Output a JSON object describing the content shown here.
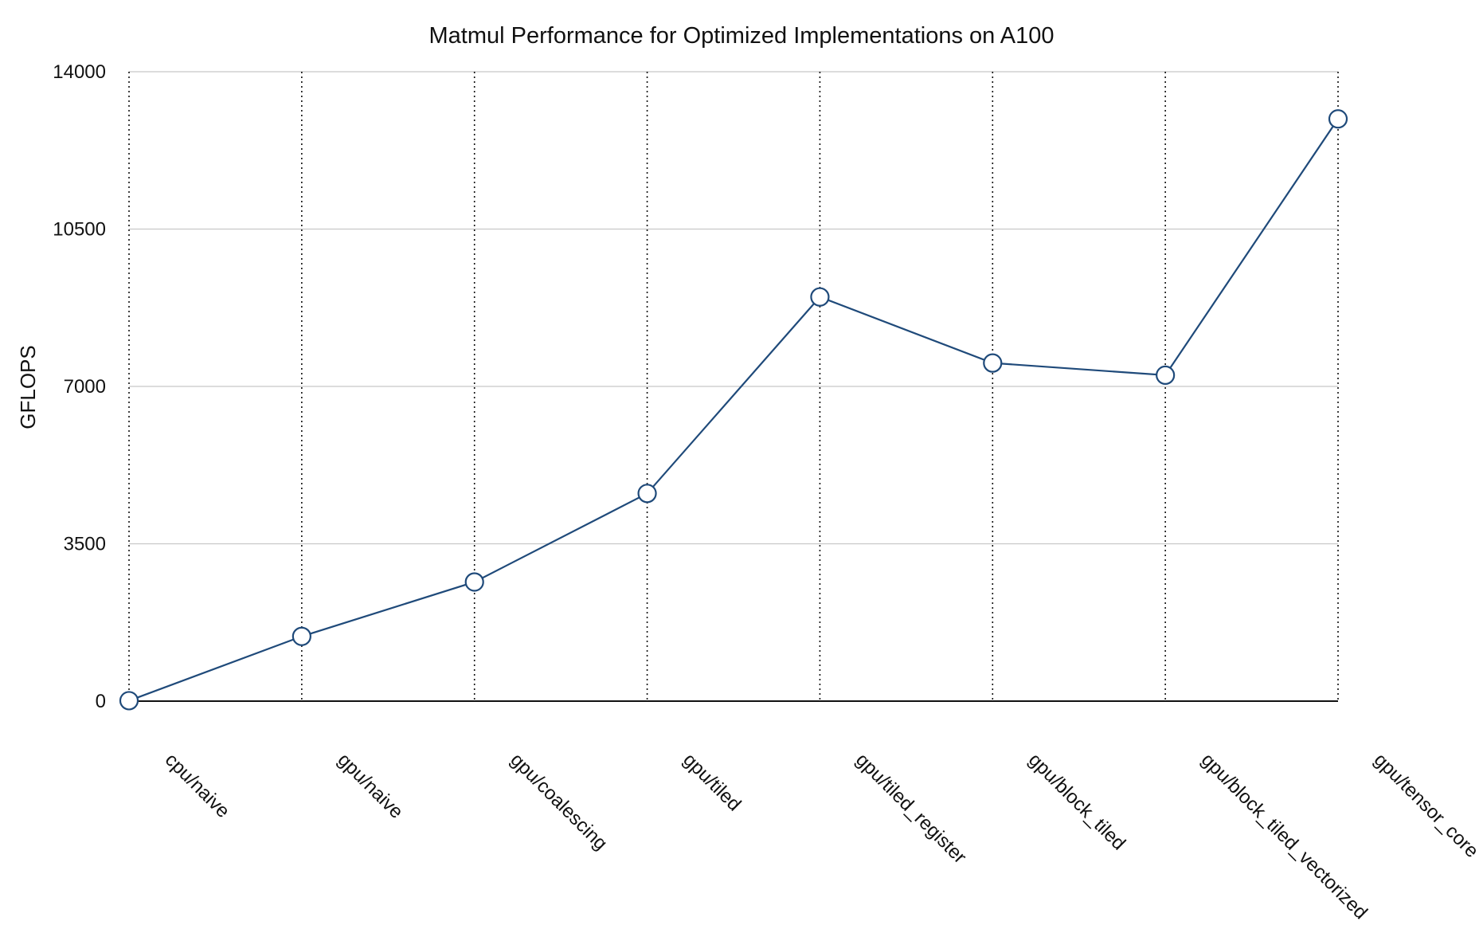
{
  "chart_data": {
    "type": "line",
    "title": "Matmul Performance for Optimized Implementations on A100",
    "xlabel": "",
    "ylabel": "GFLOPS",
    "ylim": [
      0,
      14000
    ],
    "yticks": [
      "0",
      "3500",
      "7000",
      "10500",
      "14000"
    ],
    "categories": [
      "cpu/naive",
      "gpu/naive",
      "gpu/coalescing",
      "gpu/tiled",
      "gpu/tiled_register",
      "gpu/block_tiled",
      "gpu/block_tiled_vectorized",
      "gpu/tensor_core"
    ],
    "series": [
      {
        "name": "",
        "values": [
          10,
          1440,
          2650,
          4620,
          8990,
          7520,
          7250,
          12950
        ]
      }
    ],
    "grid": true,
    "legend": "none",
    "colors": {
      "line": "#1f4a7a",
      "marker_fill": "#ffffff",
      "gridline": "#c8c8c8",
      "vertical_grid": "#111111",
      "axis": "#111111"
    }
  }
}
